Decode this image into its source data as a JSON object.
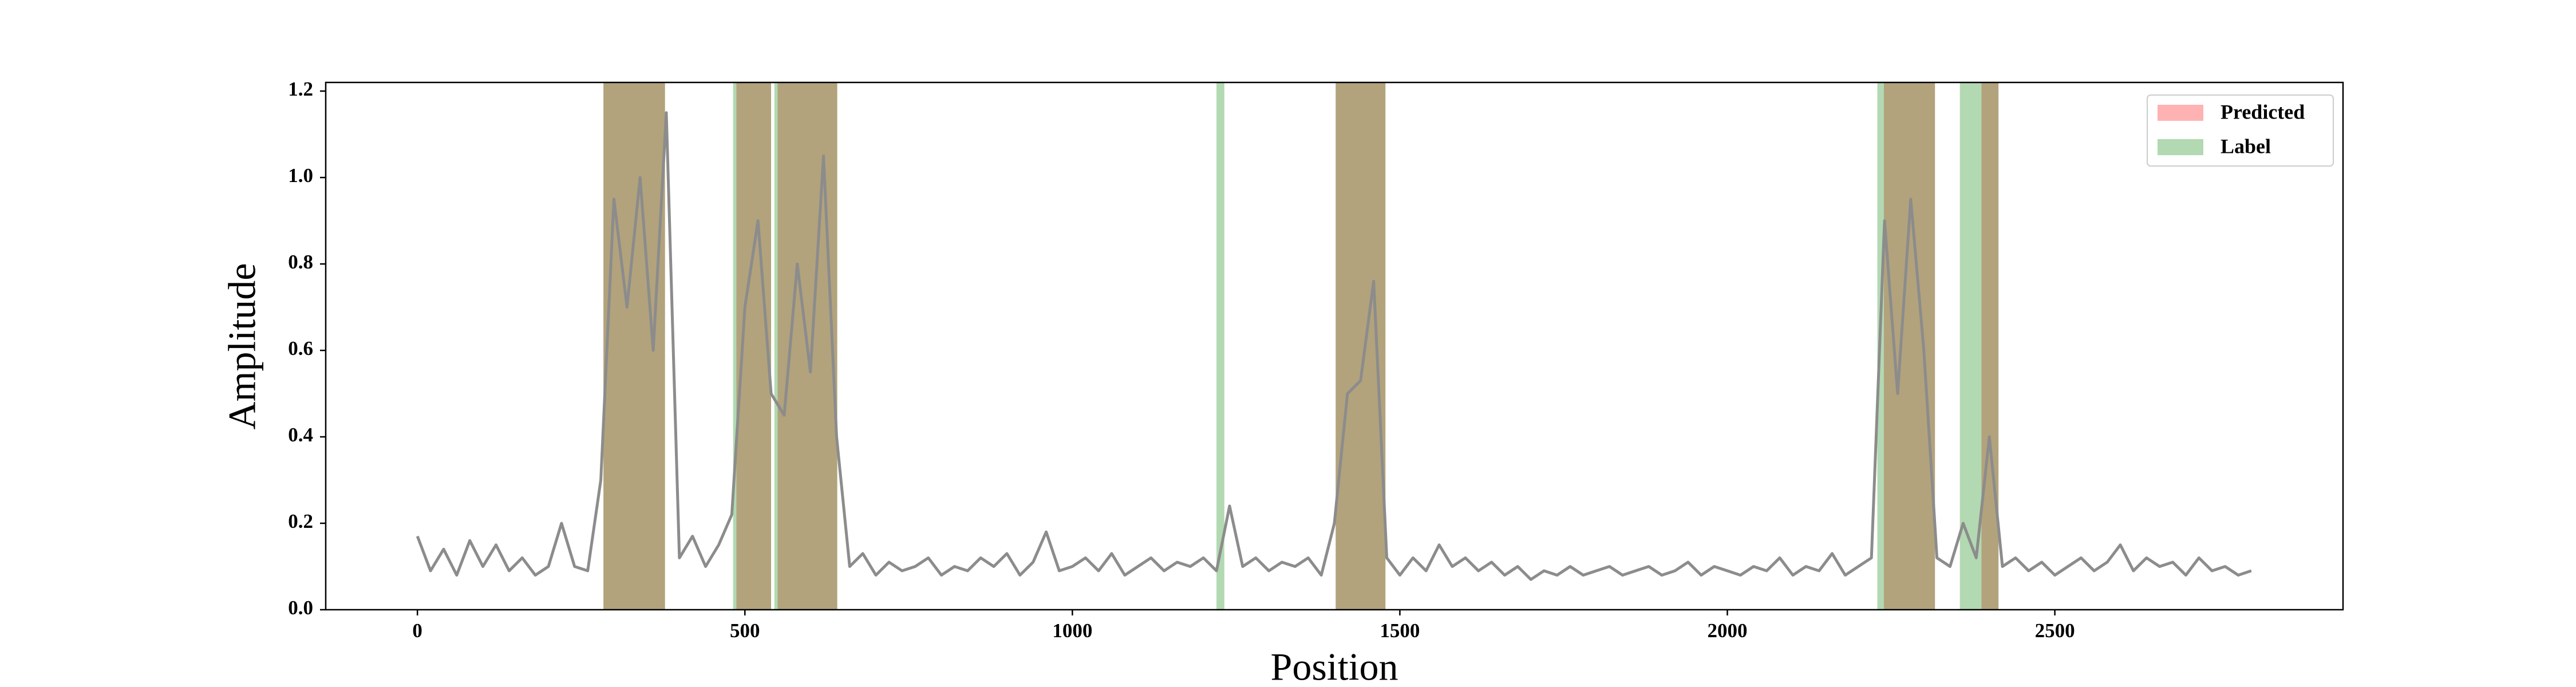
{
  "chart_data": {
    "type": "line",
    "x_label": "Position",
    "y_label": "Amplitude",
    "xlim": [
      -140,
      2940
    ],
    "ylim": [
      0,
      1.22
    ],
    "xticks": [
      0,
      500,
      1000,
      1500,
      2000,
      2500
    ],
    "yticks": [
      {
        "value": 0,
        "label": "0.0"
      },
      0.2,
      0.4,
      0.6,
      0.8,
      {
        "value": 1,
        "label": "1.0"
      },
      1.2
    ],
    "legend_position": "upper right",
    "x": [
      0,
      20,
      40,
      60,
      80,
      100,
      120,
      140,
      160,
      180,
      200,
      220,
      240,
      260,
      280,
      300,
      320,
      340,
      360,
      380,
      400,
      420,
      440,
      460,
      480,
      500,
      520,
      540,
      560,
      580,
      600,
      620,
      640,
      660,
      680,
      700,
      720,
      740,
      760,
      780,
      800,
      820,
      840,
      860,
      880,
      900,
      920,
      940,
      960,
      980,
      1000,
      1020,
      1040,
      1060,
      1080,
      1100,
      1120,
      1140,
      1160,
      1180,
      1200,
      1220,
      1240,
      1260,
      1280,
      1300,
      1320,
      1340,
      1360,
      1380,
      1400,
      1420,
      1440,
      1460,
      1480,
      1500,
      1520,
      1540,
      1560,
      1580,
      1600,
      1620,
      1640,
      1660,
      1680,
      1700,
      1720,
      1740,
      1760,
      1780,
      1800,
      1820,
      1840,
      1860,
      1880,
      1900,
      1920,
      1940,
      1960,
      1980,
      2000,
      2020,
      2040,
      2060,
      2080,
      2100,
      2120,
      2140,
      2160,
      2180,
      2200,
      2220,
      2240,
      2260,
      2280,
      2300,
      2320,
      2340,
      2360,
      2380,
      2400,
      2420,
      2440,
      2460,
      2480,
      2500,
      2520,
      2540,
      2560,
      2580,
      2600,
      2620,
      2640,
      2660,
      2680,
      2700,
      2720,
      2740,
      2760,
      2780,
      2800
    ],
    "series": [
      {
        "color": "#8c8c8c",
        "values": [
          0.17,
          0.09,
          0.14,
          0.08,
          0.16,
          0.1,
          0.15,
          0.09,
          0.12,
          0.08,
          0.1,
          0.2,
          0.1,
          0.09,
          0.3,
          0.95,
          0.7,
          1.0,
          0.6,
          1.15,
          0.12,
          0.17,
          0.1,
          0.15,
          0.22,
          0.7,
          0.9,
          0.5,
          0.45,
          0.8,
          0.55,
          1.05,
          0.4,
          0.1,
          0.13,
          0.08,
          0.11,
          0.09,
          0.1,
          0.12,
          0.08,
          0.1,
          0.09,
          0.12,
          0.1,
          0.13,
          0.08,
          0.11,
          0.18,
          0.09,
          0.1,
          0.12,
          0.09,
          0.13,
          0.08,
          0.1,
          0.12,
          0.09,
          0.11,
          0.1,
          0.12,
          0.09,
          0.24,
          0.1,
          0.12,
          0.09,
          0.11,
          0.1,
          0.12,
          0.08,
          0.2,
          0.5,
          0.53,
          0.76,
          0.12,
          0.08,
          0.12,
          0.09,
          0.15,
          0.1,
          0.12,
          0.09,
          0.11,
          0.08,
          0.1,
          0.07,
          0.09,
          0.08,
          0.1,
          0.08,
          0.09,
          0.1,
          0.08,
          0.09,
          0.1,
          0.08,
          0.09,
          0.11,
          0.08,
          0.1,
          0.09,
          0.08,
          0.1,
          0.09,
          0.12,
          0.08,
          0.1,
          0.09,
          0.13,
          0.08,
          0.1,
          0.12,
          0.9,
          0.5,
          0.95,
          0.6,
          0.12,
          0.1,
          0.2,
          0.12,
          0.4,
          0.1,
          0.12,
          0.09,
          0.11,
          0.08,
          0.1,
          0.12,
          0.09,
          0.11,
          0.15,
          0.09,
          0.12,
          0.1,
          0.11,
          0.08,
          0.12,
          0.09,
          0.1,
          0.08,
          0.09
        ]
      }
    ],
    "regions": [
      {
        "name": "Predicted",
        "color": "#ff0000",
        "alpha": 0.3,
        "spans": [
          [
            284,
            378
          ],
          [
            487,
            540
          ],
          [
            550,
            641
          ],
          [
            1402,
            1478
          ],
          [
            2239,
            2317
          ],
          [
            2388,
            2414
          ]
        ]
      },
      {
        "name": "Label",
        "color": "#008000",
        "alpha": 0.3,
        "spans": [
          [
            284,
            378
          ],
          [
            482,
            540
          ],
          [
            545,
            641
          ],
          [
            1220,
            1232
          ],
          [
            1402,
            1478
          ],
          [
            2229,
            2317
          ],
          [
            2355,
            2414
          ]
        ]
      }
    ]
  }
}
